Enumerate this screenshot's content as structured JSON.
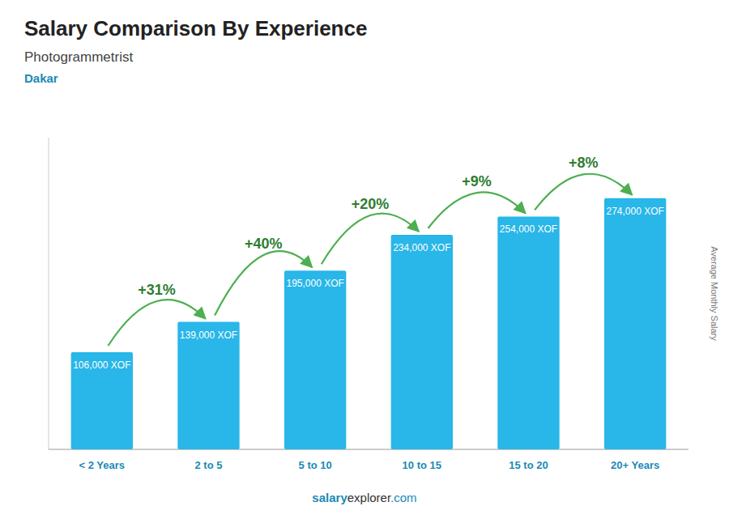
{
  "chart_data": {
    "type": "bar",
    "title": "Salary Comparison By Experience",
    "subtitle": "Photogrammetrist",
    "location": "Dakar",
    "categories": [
      "< 2 Years",
      "2 to 5",
      "5 to 10",
      "10 to 15",
      "15 to 20",
      "20+ Years"
    ],
    "values": [
      106000,
      139000,
      195000,
      234000,
      254000,
      274000
    ],
    "value_labels": [
      "106,000 XOF",
      "139,000 XOF",
      "195,000 XOF",
      "234,000 XOF",
      "254,000 XOF",
      "274,000 XOF"
    ],
    "data_labels": true,
    "annotations": [
      "+31%",
      "+40%",
      "+20%",
      "+9%",
      "+8%"
    ],
    "y_label": "Average Monthly Salary",
    "footer": [
      "salary",
      "explorer",
      ".com"
    ],
    "color": "#29b6e8",
    "ylim": [
      0,
      340000
    ],
    "tick_labels": "x",
    "grid": false
  }
}
